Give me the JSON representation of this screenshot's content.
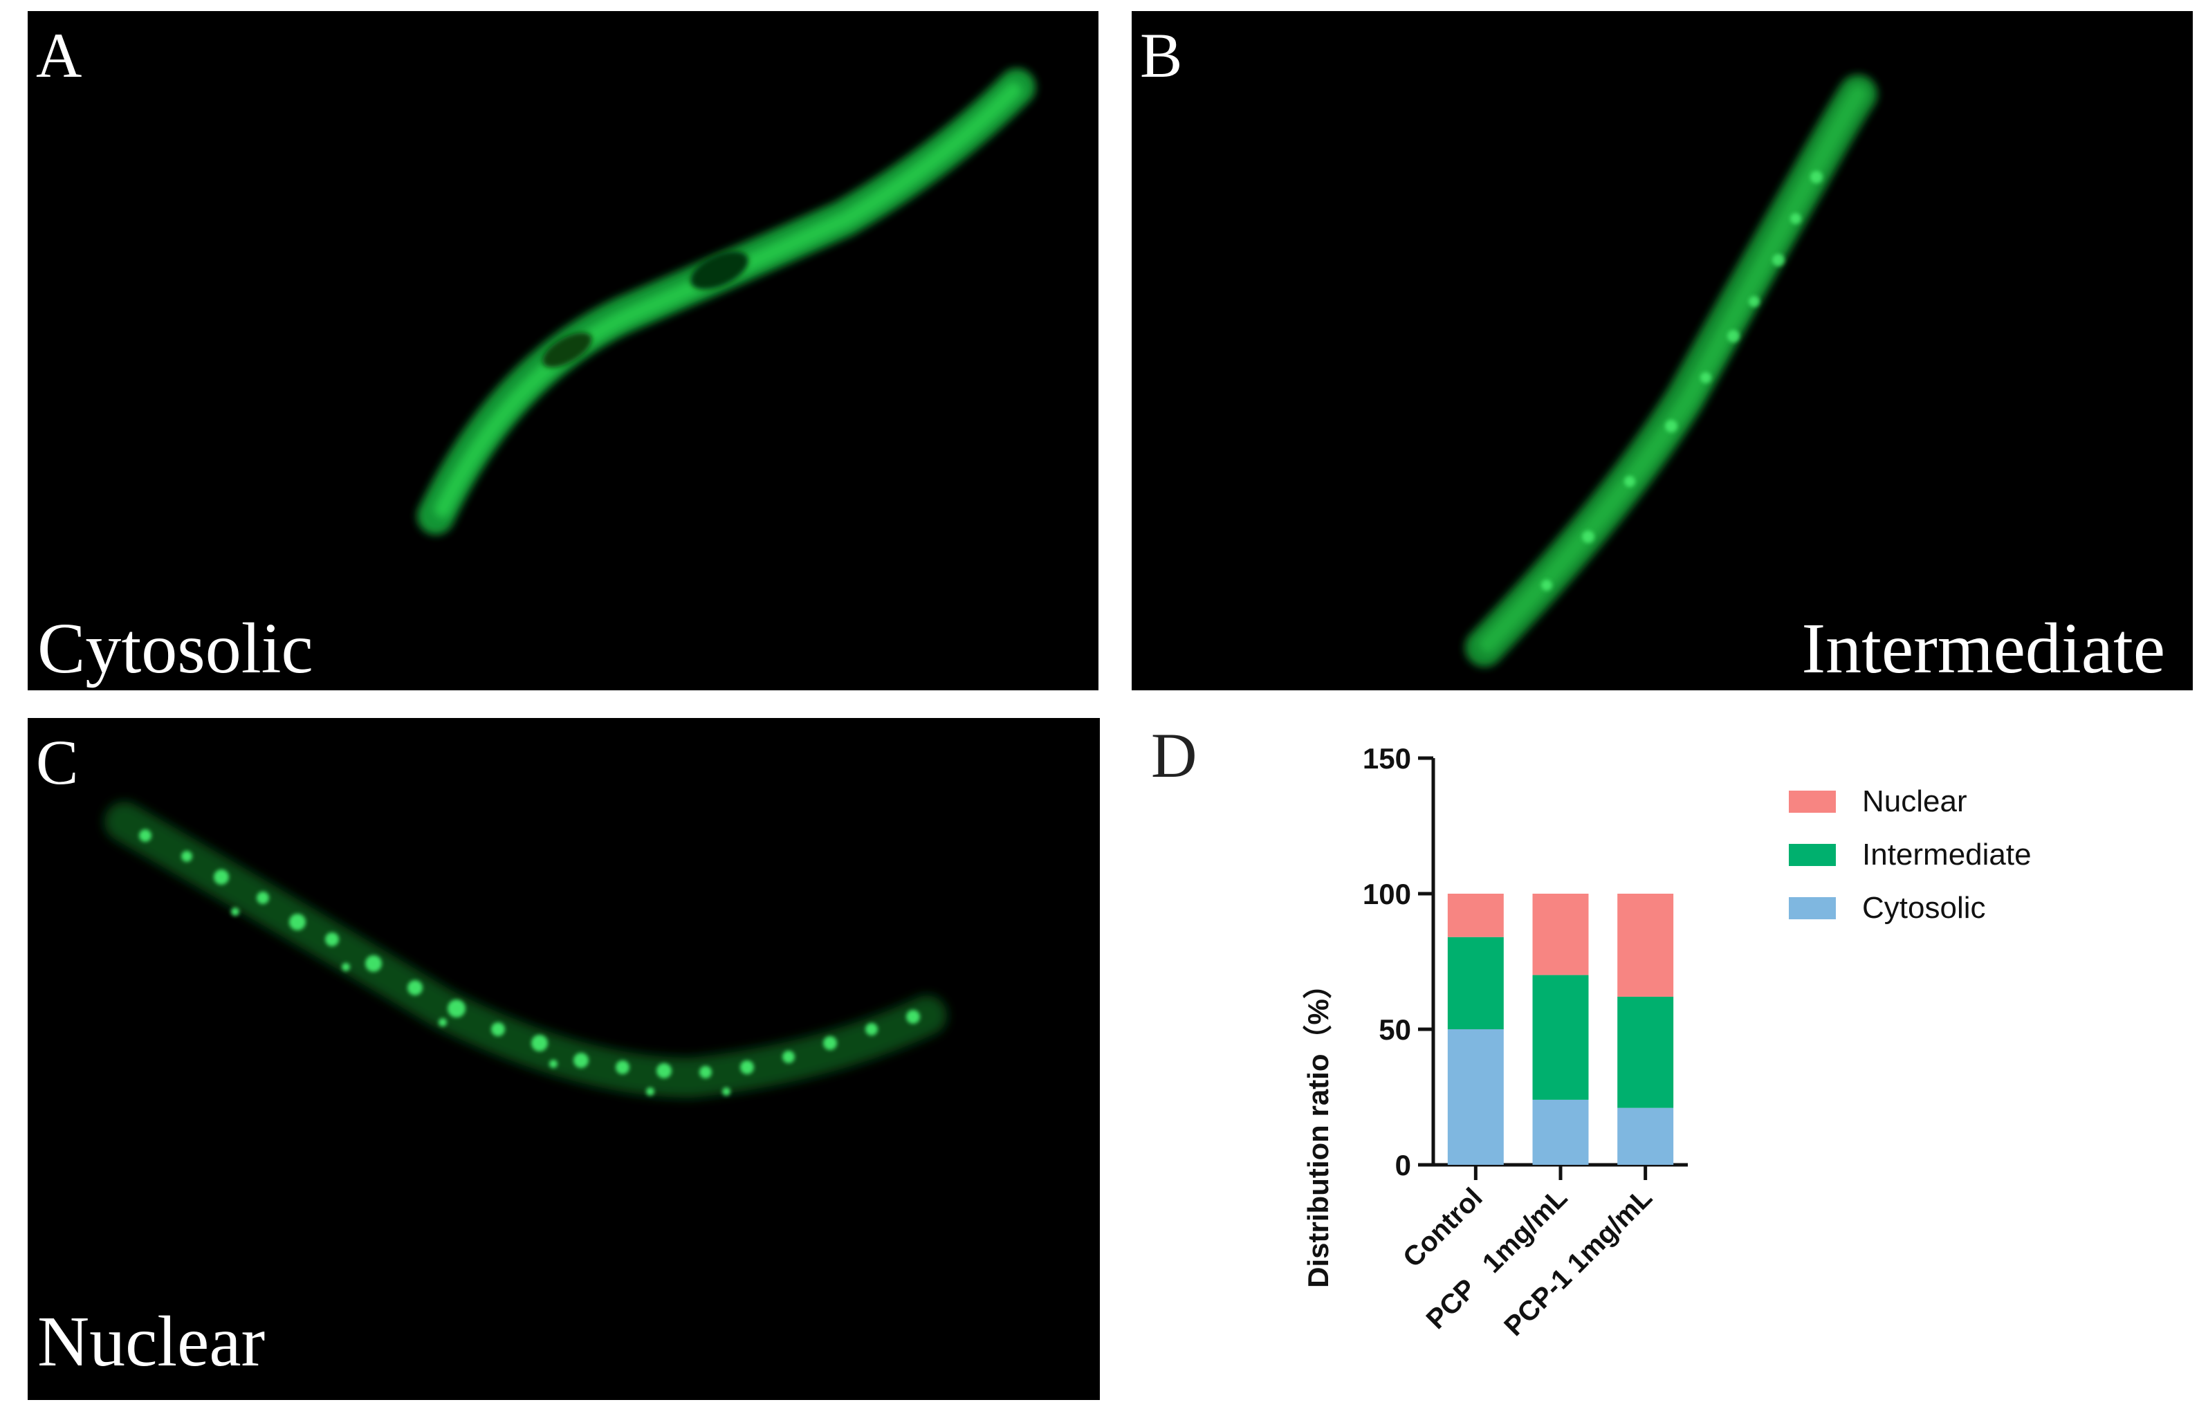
{
  "panels": {
    "a": {
      "letter": "A",
      "caption": "Cytosolic"
    },
    "b": {
      "letter": "B",
      "caption": "Intermediate"
    },
    "c": {
      "letter": "C",
      "caption": "Nuclear"
    },
    "d": {
      "letter": "D"
    }
  },
  "colors": {
    "nuclear": "#f78582",
    "intermediate": "#00b06e",
    "cytosolic": "#7fb7e0",
    "gfp": "#1fd24a"
  },
  "chart_data": {
    "type": "bar",
    "stacked": true,
    "categories": [
      "Control",
      "PCP   1mg/mL",
      "PCP-1 1mg/mL"
    ],
    "series": [
      {
        "name": "Cytosolic",
        "values": [
          50,
          24,
          21
        ]
      },
      {
        "name": "Intermediate",
        "values": [
          34,
          46,
          41
        ]
      },
      {
        "name": "Nuclear",
        "values": [
          16,
          30,
          38
        ]
      }
    ],
    "ylabel": "Distribution ratio（%）",
    "ylim": [
      0,
      150
    ],
    "yticks": [
      "0",
      "50",
      "100",
      "150"
    ],
    "legend": [
      "Nuclear",
      "Intermediate",
      "Cytosolic"
    ],
    "legend_position": "right"
  }
}
